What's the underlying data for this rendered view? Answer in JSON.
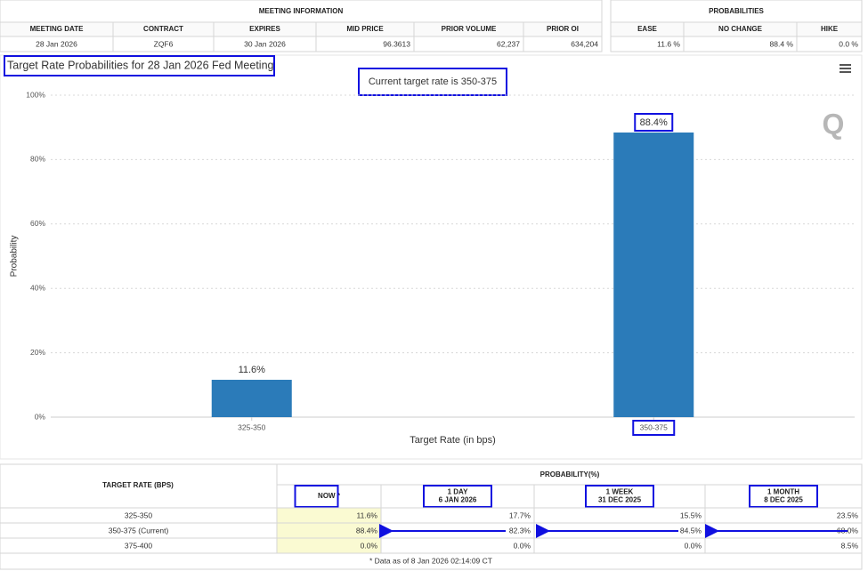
{
  "meeting_table": {
    "group_title": "MEETING INFORMATION",
    "headers": [
      "MEETING DATE",
      "CONTRACT",
      "EXPIRES",
      "MID PRICE",
      "PRIOR VOLUME",
      "PRIOR OI"
    ],
    "row": [
      "28 Jan 2026",
      "ZQF6",
      "30 Jan 2026",
      "96.3613",
      "62,237",
      "634,204"
    ]
  },
  "probabilities_table": {
    "group_title": "PROBABILITIES",
    "headers": [
      "EASE",
      "NO CHANGE",
      "HIKE"
    ],
    "row": [
      "11.6 %",
      "88.4 %",
      "0.0 %"
    ]
  },
  "chart_data": {
    "type": "bar",
    "title": "Target Rate Probabilities for 28 Jan 2026 Fed Meeting",
    "subtitle": "Current target rate is 350-375",
    "x_label": "Target Rate (in bps)",
    "y_label": "Probability",
    "categories": [
      "325-350",
      "350-375"
    ],
    "values": [
      11.6,
      88.4
    ],
    "value_labels": [
      "11.6%",
      "88.4%"
    ],
    "color": "#2b7bb9",
    "ylim": [
      0,
      100
    ],
    "yticks": [
      {
        "value": 0,
        "label": "0%"
      },
      {
        "value": 20,
        "label": "20%"
      },
      {
        "value": 40,
        "label": "40%"
      },
      {
        "value": 60,
        "label": "60%"
      },
      {
        "value": 80,
        "label": "80%"
      },
      {
        "value": 100,
        "label": "100%"
      }
    ],
    "grid": true
  },
  "history_table": {
    "first_header": "TARGET RATE (BPS)",
    "group_title": "PROBABILITY(%)",
    "columns": [
      {
        "lines": [
          "NOW *"
        ]
      },
      {
        "lines": [
          "1 DAY",
          "6 JAN 2026"
        ]
      },
      {
        "lines": [
          "1 WEEK",
          "31 DEC 2025"
        ]
      },
      {
        "lines": [
          "1 MONTH",
          "8 DEC 2025"
        ]
      }
    ],
    "rows": [
      [
        "325-350",
        "11.6%",
        "17.7%",
        "15.5%",
        "23.5%"
      ],
      [
        "350-375 (Current)",
        "88.4%",
        "82.3%",
        "84.5%",
        "68.0%"
      ],
      [
        "375-400",
        "0.0%",
        "0.0%",
        "0.0%",
        "8.5%"
      ]
    ],
    "footnote": "* Data as of 8 Jan 2026 02:14:09 CT"
  }
}
